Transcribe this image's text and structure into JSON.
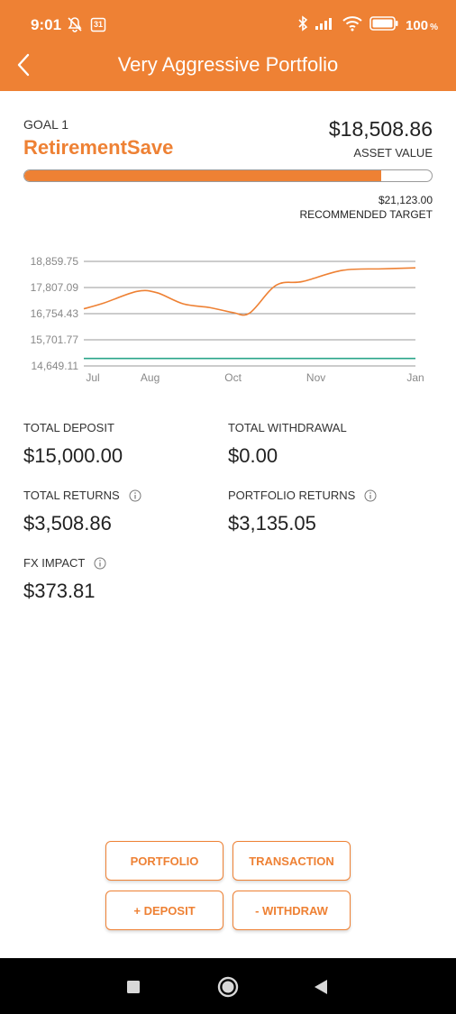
{
  "status_bar": {
    "time": "9:01",
    "calendar_day": "31",
    "battery": "100",
    "battery_unit": "%"
  },
  "header": {
    "title": "Very Aggressive Portfolio"
  },
  "goal": {
    "label": "GOAL 1",
    "name": "RetirementSave",
    "asset_value": "$18,508.86",
    "asset_label": "ASSET VALUE",
    "progress_fraction": 0.876,
    "target_value": "$21,123.00",
    "target_label": "RECOMMENDED TARGET"
  },
  "colors": {
    "accent": "#ee8134",
    "target_line": "#2aa589"
  },
  "chart_data": {
    "type": "line",
    "y_ticks": [
      "18,859.75",
      "17,807.09",
      "16,754.43",
      "15,701.77",
      "14,649.11"
    ],
    "y_tick_values": [
      18859.75,
      17807.09,
      16754.43,
      15701.77,
      14649.11
    ],
    "ylim": [
      14649.11,
      18859.75
    ],
    "x_ticks": [
      "Jul",
      "Aug",
      "Oct",
      "Nov",
      "Jan"
    ],
    "x_tick_positions": [
      0,
      0.2,
      0.45,
      0.7,
      1.0
    ],
    "grid": true,
    "series": [
      {
        "color": "#ee8134",
        "points": [
          [
            0,
            16950
          ],
          [
            0.06,
            17180
          ],
          [
            0.16,
            17650
          ],
          [
            0.22,
            17600
          ],
          [
            0.3,
            17150
          ],
          [
            0.38,
            17000
          ],
          [
            0.45,
            16800
          ],
          [
            0.5,
            16780
          ],
          [
            0.58,
            17900
          ],
          [
            0.66,
            18050
          ],
          [
            0.78,
            18500
          ],
          [
            0.9,
            18560
          ],
          [
            1.0,
            18600
          ]
        ]
      },
      {
        "color": "#2aa589",
        "points": [
          [
            0,
            14950
          ],
          [
            1.0,
            14950
          ]
        ]
      }
    ]
  },
  "stats": {
    "total_deposit_label": "TOTAL DEPOSIT",
    "total_deposit_value": "$15,000.00",
    "total_withdrawal_label": "TOTAL WITHDRAWAL",
    "total_withdrawal_value": "$0.00",
    "total_returns_label": "TOTAL RETURNS",
    "total_returns_value": "$3,508.86",
    "portfolio_returns_label": "PORTFOLIO RETURNS",
    "portfolio_returns_value": "$3,135.05",
    "fx_impact_label": "FX IMPACT",
    "fx_impact_value": "$373.81"
  },
  "actions": {
    "portfolio": "PORTFOLIO",
    "transaction": "TRANSACTION",
    "deposit": "+ DEPOSIT",
    "withdraw": "- WITHDRAW"
  }
}
